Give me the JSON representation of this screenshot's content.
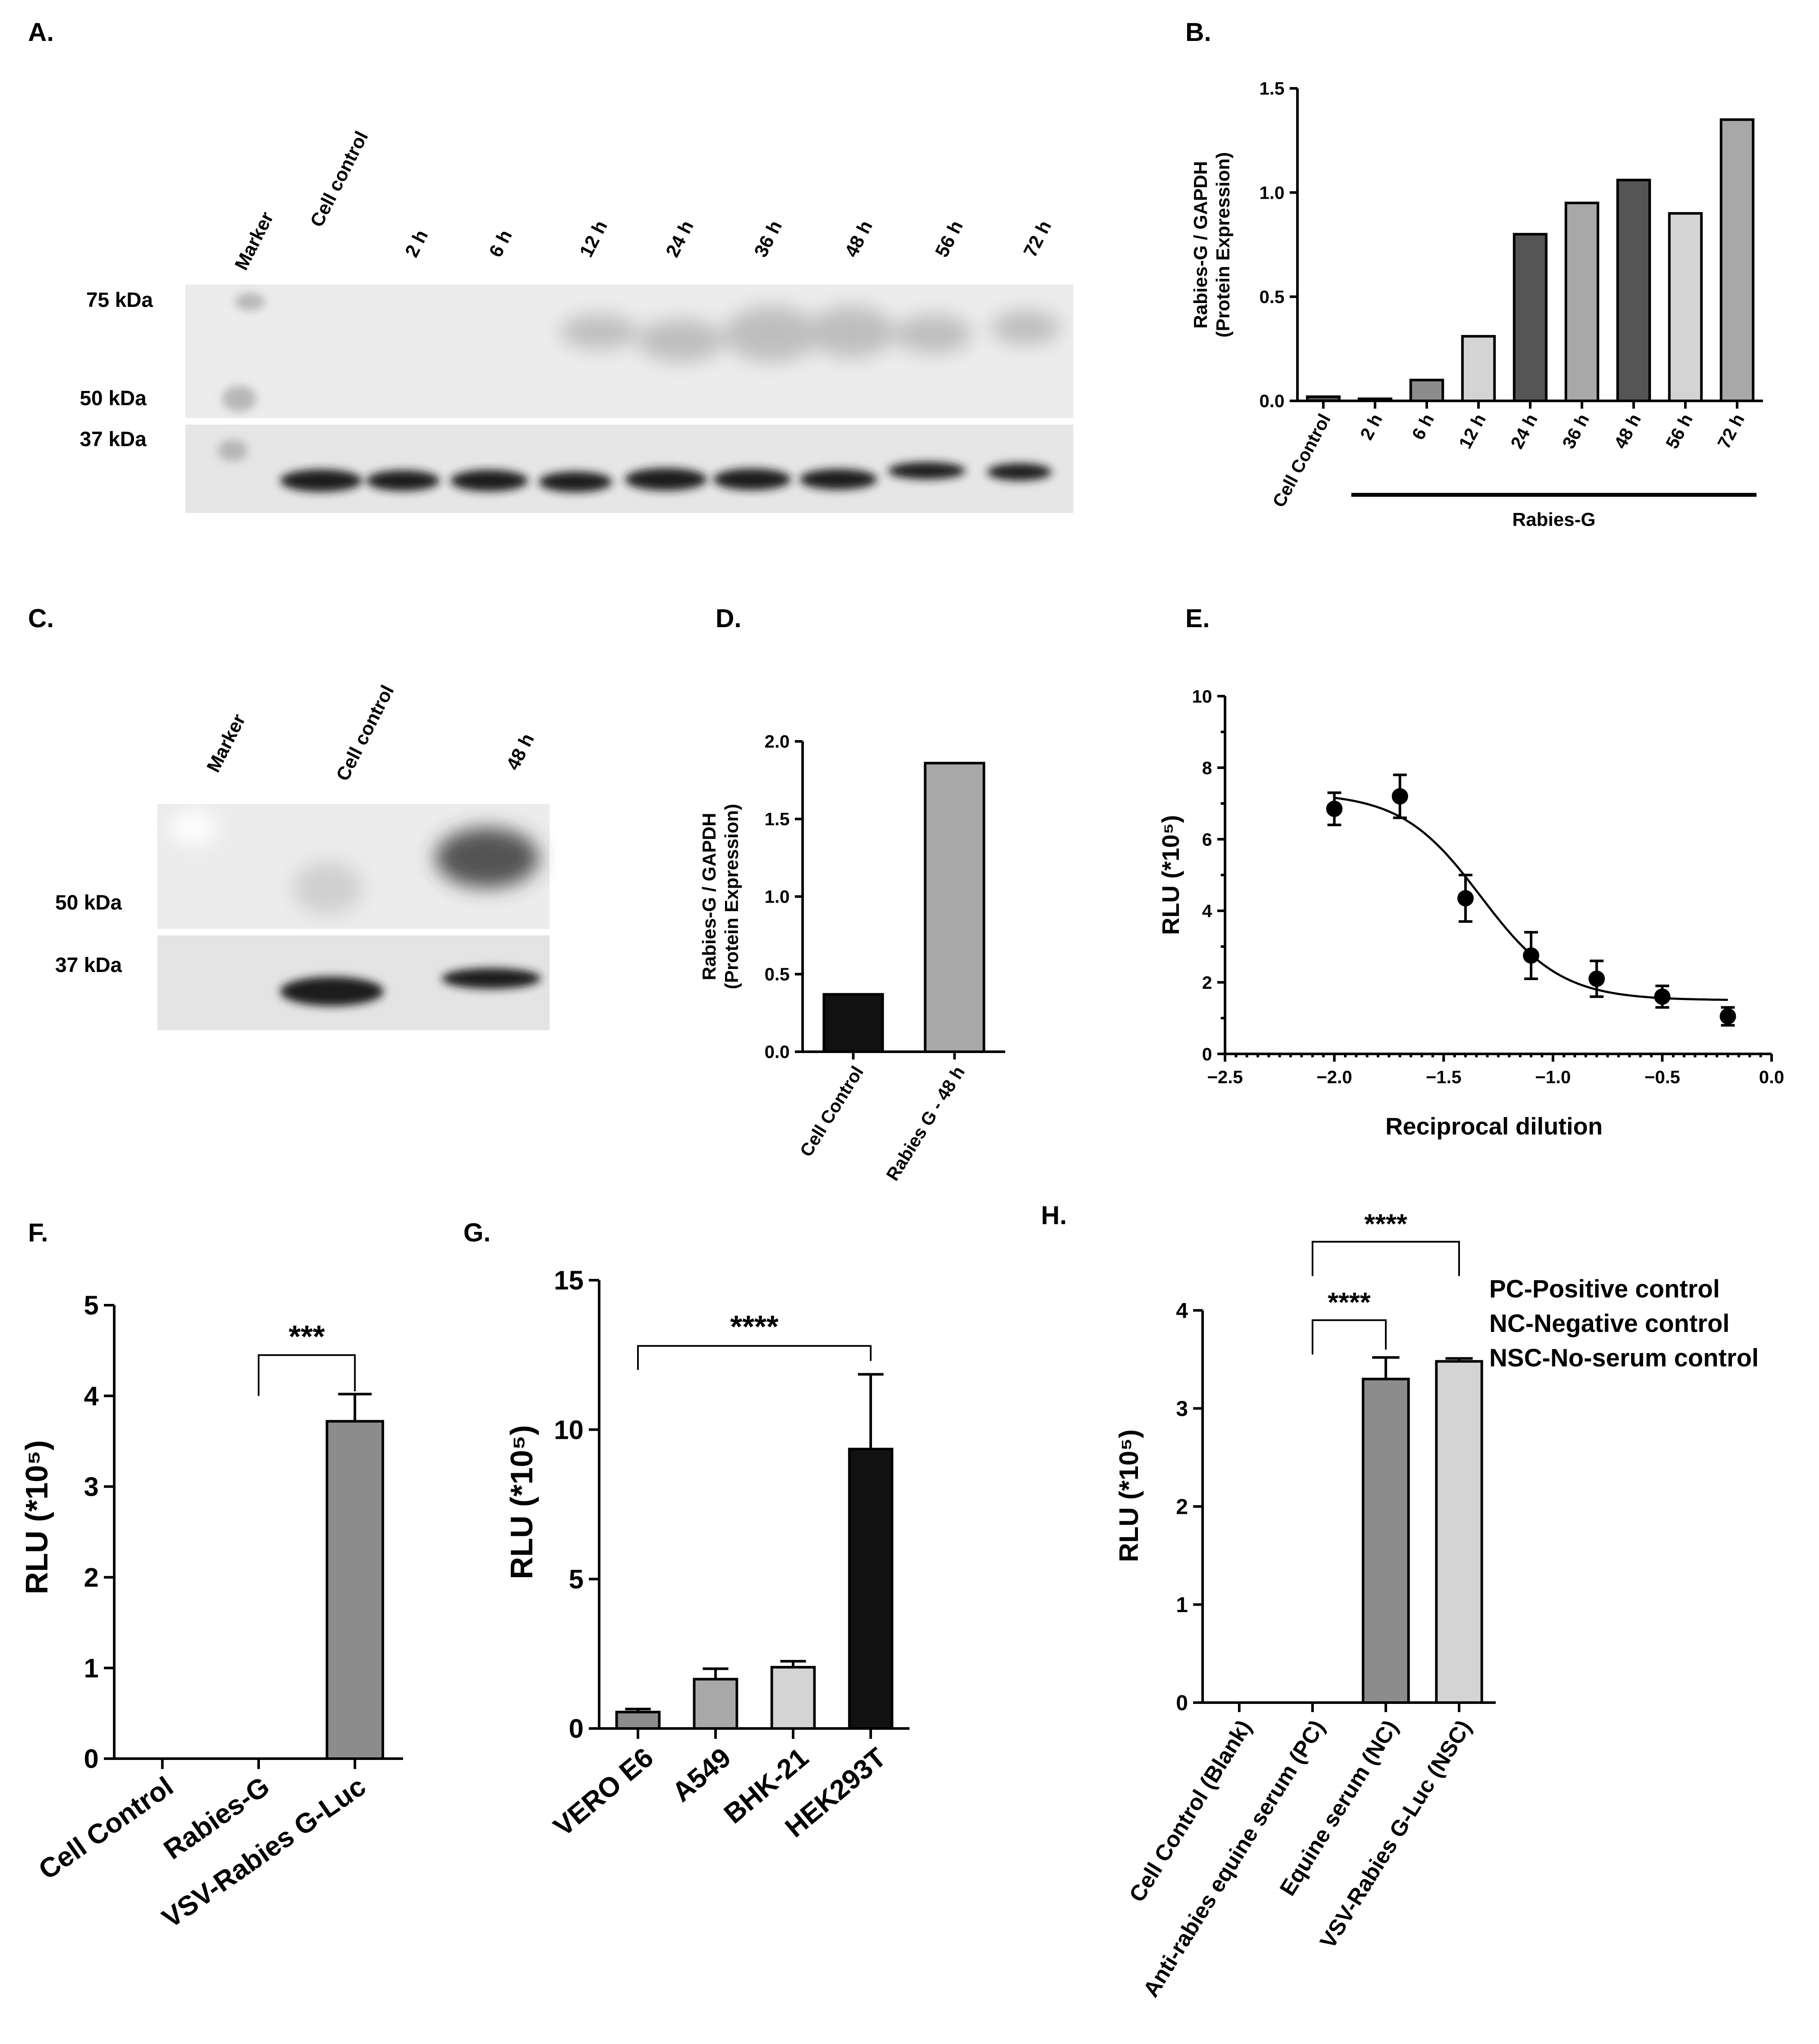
{
  "panel_labels": {
    "A": "A.",
    "B": "B.",
    "C": "C.",
    "D": "D.",
    "E": "E.",
    "F": "F.",
    "G": "G.",
    "H": "H."
  },
  "blot_a": {
    "lanes": [
      "Marker",
      "Cell control",
      "2 h",
      "6 h",
      "12 h",
      "24 h",
      "36 h",
      "48 h",
      "56 h",
      "72 h"
    ],
    "mw": [
      "75 kDa",
      "50 kDa",
      "37 kDa"
    ]
  },
  "blot_c": {
    "lanes": [
      "Marker",
      "Cell control",
      "48 h"
    ],
    "mw": [
      "50 kDa",
      "37 kDa"
    ]
  },
  "colors": {
    "black": "#111111",
    "dark": "#555555",
    "mid": "#8c8c8c",
    "midlight": "#a8a8a8",
    "light": "#d4d4d4"
  },
  "chart_data": [
    {
      "id": "B",
      "type": "bar",
      "categories": [
        "Cell Control",
        "2 h",
        "6 h",
        "12 h",
        "24 h",
        "36 h",
        "48 h",
        "56 h",
        "72 h"
      ],
      "values": [
        0.02,
        0.01,
        0.1,
        0.31,
        0.8,
        0.95,
        1.06,
        0.9,
        1.35
      ],
      "colors": [
        "dark",
        "dark",
        "mid",
        "light",
        "dark",
        "midlight",
        "dark",
        "light",
        "midlight"
      ],
      "ylabel_lines": [
        "Rabies-G / GAPDH",
        "(Protein Expression)"
      ],
      "ylim": [
        0,
        1.5
      ],
      "yticks": [
        "0.0",
        "0.5",
        "1.0",
        "1.5"
      ],
      "group_label": "Rabies-G"
    },
    {
      "id": "D",
      "type": "bar",
      "categories": [
        "Cell Control",
        "Rabies G - 48 h"
      ],
      "values": [
        0.37,
        1.86
      ],
      "colors": [
        "black",
        "midlight"
      ],
      "ylabel_lines": [
        "Rabies-G / GAPDH",
        "(Protein Expression)"
      ],
      "ylim": [
        0,
        2.0
      ],
      "yticks": [
        "0.0",
        "0.5",
        "1.0",
        "1.5",
        "2.0"
      ]
    },
    {
      "id": "E",
      "type": "scatter",
      "x": [
        -2.0,
        -1.7,
        -1.4,
        -1.1,
        -0.8,
        -0.5,
        -0.2
      ],
      "y": [
        6.85,
        7.2,
        4.35,
        2.75,
        2.1,
        1.6,
        1.05
      ],
      "err": [
        0.45,
        0.6,
        0.65,
        0.65,
        0.5,
        0.3,
        0.25
      ],
      "fit": "sigmoid",
      "fit_params": {
        "bottom": 1.5,
        "top": 7.3,
        "x50": -1.33,
        "slope": 5.5
      },
      "xlabel": "Reciprocal dilution",
      "ylabel": "RLU (*10⁵)",
      "xlim": [
        -2.5,
        0.0
      ],
      "ylim": [
        0,
        10
      ],
      "xticks": [
        "−2.5",
        "−2.0",
        "−1.5",
        "−1.0",
        "−0.5",
        "0.0"
      ],
      "yticks": [
        "0",
        "2",
        "4",
        "6",
        "8",
        "10"
      ]
    },
    {
      "id": "F",
      "type": "bar",
      "categories": [
        "Cell Control",
        "Rabies-G",
        "VSV-Rabies G-Luc"
      ],
      "values": [
        0,
        0,
        3.72
      ],
      "err": [
        0,
        0,
        0.3
      ],
      "colors": [
        "mid",
        "mid",
        "mid"
      ],
      "ylabel": "RLU (*10⁵)",
      "ylim": [
        0,
        5
      ],
      "yticks": [
        "0",
        "1",
        "2",
        "3",
        "4",
        "5"
      ],
      "significance": "***"
    },
    {
      "id": "G",
      "type": "bar",
      "categories": [
        "VERO E6",
        "A549",
        "BHK-21",
        "HEK293T"
      ],
      "values": [
        0.55,
        1.65,
        2.05,
        9.35
      ],
      "err": [
        0.1,
        0.35,
        0.2,
        2.5
      ],
      "colors": [
        "mid",
        "midlight",
        "light",
        "black"
      ],
      "ylabel": "RLU (*10⁵)",
      "ylim": [
        0,
        15
      ],
      "yticks": [
        "0",
        "5",
        "10",
        "15"
      ],
      "significance": "****"
    },
    {
      "id": "H",
      "type": "bar",
      "categories": [
        "Cell Control (Blank)",
        "Anti-rabies equine serum (PC)",
        "Equine serum (NC)",
        "VSV-Rabies G-Luc (NSC)"
      ],
      "values": [
        0,
        0,
        3.3,
        3.48
      ],
      "err": [
        0,
        0,
        0.22,
        0.03
      ],
      "colors": [
        "mid",
        "mid",
        "mid",
        "light"
      ],
      "ylabel": "RLU (*10⁵)",
      "ylim": [
        0,
        4
      ],
      "yticks": [
        "0",
        "1",
        "2",
        "3",
        "4"
      ],
      "significance": [
        "****",
        "****"
      ],
      "legend_lines": [
        "PC-Positive control",
        "NC-Negative control",
        "NSC-No-serum control"
      ]
    }
  ]
}
